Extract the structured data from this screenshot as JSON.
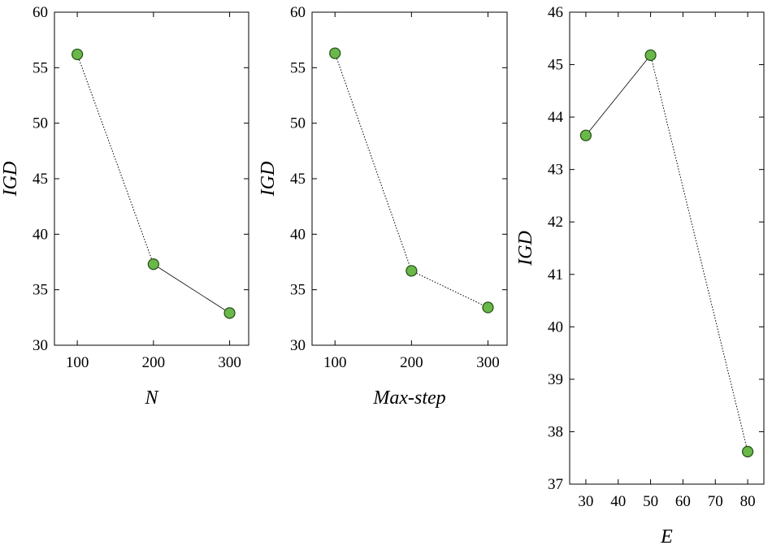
{
  "chart_data": [
    {
      "type": "line",
      "xlabel": "N",
      "ylabel": "IGD",
      "x": [
        100,
        200,
        300
      ],
      "values": [
        56.2,
        37.3,
        32.9
      ],
      "segment_styles": [
        "dotted",
        "solid"
      ],
      "xlim": [
        70,
        325
      ],
      "ylim": [
        30,
        60
      ],
      "xticks": [
        100,
        200,
        300
      ],
      "yticks": [
        30,
        35,
        40,
        45,
        50,
        55,
        60
      ],
      "marker_color": "#6ab84a"
    },
    {
      "type": "line",
      "xlabel": "Max-step",
      "ylabel": "IGD",
      "x": [
        100,
        200,
        300
      ],
      "values": [
        56.3,
        36.7,
        33.4
      ],
      "segment_styles": [
        "dotted",
        "dotted"
      ],
      "xlim": [
        70,
        325
      ],
      "ylim": [
        30,
        60
      ],
      "xticks": [
        100,
        200,
        300
      ],
      "yticks": [
        30,
        35,
        40,
        45,
        50,
        55,
        60
      ],
      "marker_color": "#6ab84a"
    },
    {
      "type": "line",
      "xlabel": "E",
      "ylabel": "IGD",
      "x": [
        30,
        50,
        80
      ],
      "values": [
        43.65,
        45.18,
        37.62
      ],
      "segment_styles": [
        "solid",
        "dotted"
      ],
      "xlim": [
        25,
        85
      ],
      "ylim": [
        37,
        46
      ],
      "xticks": [
        30,
        40,
        50,
        60,
        70,
        80
      ],
      "yticks": [
        37,
        38,
        39,
        40,
        41,
        42,
        43,
        44,
        45,
        46
      ],
      "marker_color": "#6ab84a"
    }
  ]
}
